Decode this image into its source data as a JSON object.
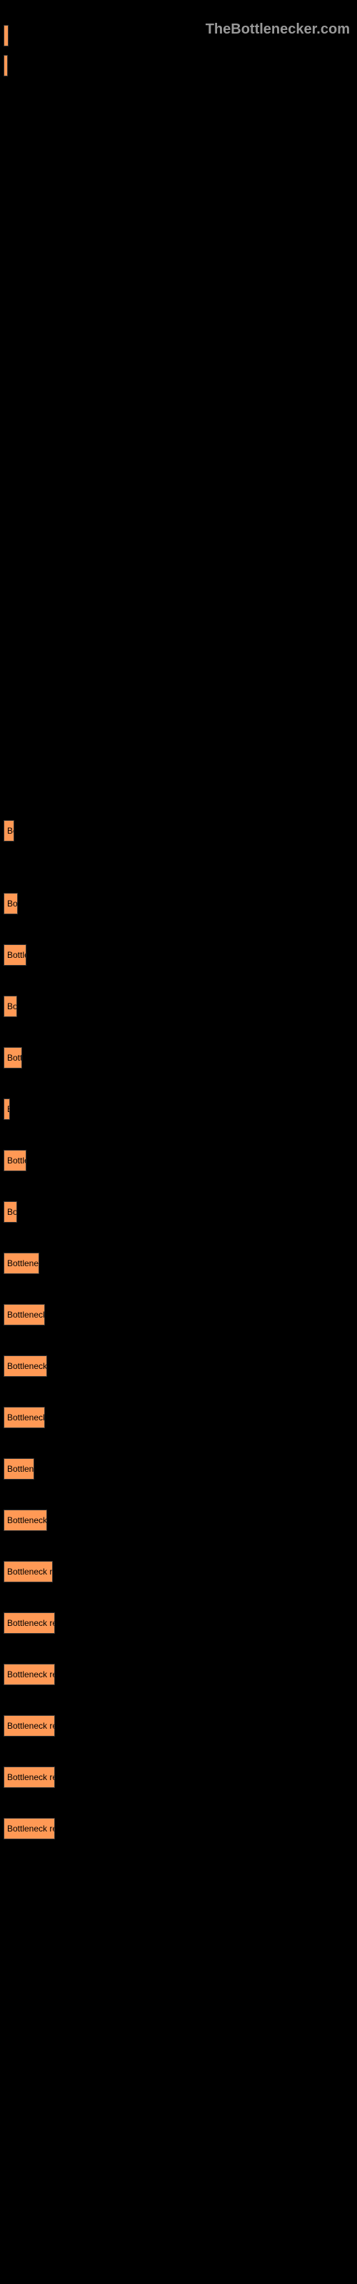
{
  "watermark": "TheBottlenecker.com",
  "topBars": [
    {
      "width": 7,
      "label": ""
    },
    {
      "width": 6,
      "label": ""
    }
  ],
  "bottomBars": [
    {
      "width": 15,
      "text": "Bo"
    },
    {
      "width": 20,
      "text": "Bott"
    },
    {
      "width": 32,
      "text": "Bottlen"
    },
    {
      "width": 19,
      "text": "Bot"
    },
    {
      "width": 26,
      "text": "Bottle"
    },
    {
      "width": 9,
      "text": "B"
    },
    {
      "width": 32,
      "text": "Bottlen"
    },
    {
      "width": 19,
      "text": "Bott"
    },
    {
      "width": 50,
      "text": "Bottleneck r"
    },
    {
      "width": 58,
      "text": "Bottleneck re"
    },
    {
      "width": 61,
      "text": "Bottleneck resu"
    },
    {
      "width": 58,
      "text": "Bottleneck res"
    },
    {
      "width": 43,
      "text": "Bottleneck"
    },
    {
      "width": 61,
      "text": "Bottleneck resu"
    },
    {
      "width": 69,
      "text": "Bottleneck result"
    },
    {
      "width": 72,
      "text": "Bottleneck result"
    },
    {
      "width": 72,
      "text": "Bottleneck result"
    },
    {
      "width": 72,
      "text": "Bottleneck result"
    },
    {
      "width": 72,
      "text": "Bottleneck result"
    },
    {
      "width": 72,
      "text": "Bottleneck resul"
    }
  ],
  "styling": {
    "barColor": "#ff9955",
    "backgroundColor": "#000000",
    "textColor": "#000000",
    "watermarkColor": "#999999",
    "barHeight": 30,
    "containerWidth": 500
  }
}
